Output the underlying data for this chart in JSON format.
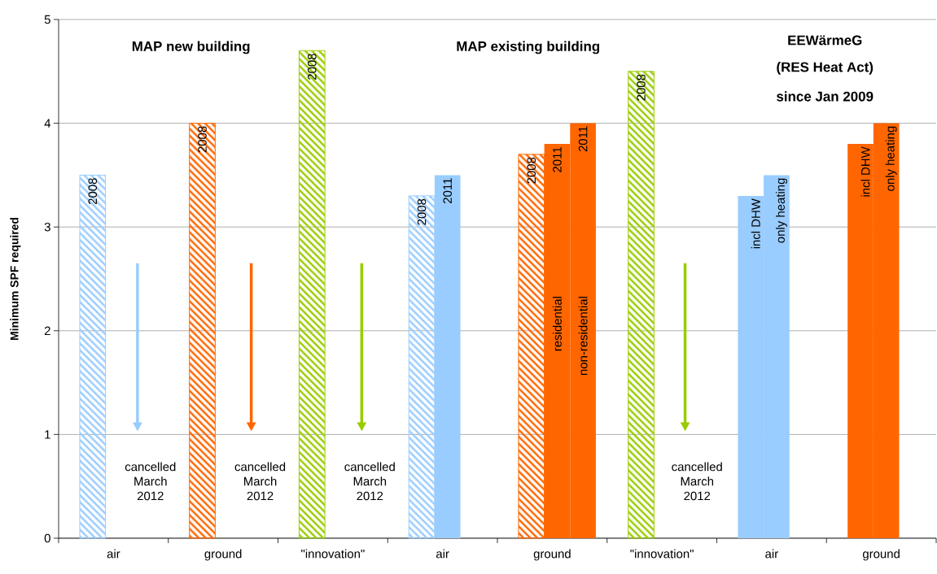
{
  "chart_data": {
    "type": "bar",
    "ylabel": "Minimum SPF required",
    "categories": [
      "air",
      "ground",
      "\"innovation\"",
      "air",
      "ground",
      "\"innovation\"",
      "air",
      "ground"
    ],
    "series": [
      {
        "values": [
          3.5,
          4.0,
          4.7,
          3.3,
          3.7,
          4.5,
          3.3,
          3.8
        ],
        "colors": [
          "#99ccff",
          "#ff6600",
          "#99cc00",
          "#99ccff",
          "#ff6600",
          "#99cc00",
          "#99ccff",
          "#ff6600"
        ]
      },
      {
        "values": [
          null,
          null,
          null,
          3.5,
          3.8,
          null,
          3.5,
          4.0
        ],
        "colors": [
          null,
          null,
          null,
          "#99ccff",
          "#ff6600",
          null,
          "#99ccff",
          "#ff6600"
        ]
      },
      {
        "values": [
          null,
          null,
          null,
          null,
          4.0,
          null,
          null,
          null
        ],
        "colors": [
          null,
          null,
          null,
          null,
          "#ff6600",
          null,
          null,
          null
        ]
      }
    ],
    "ylim": [
      0,
      5
    ],
    "yticks": [
      0,
      1,
      2,
      3,
      4,
      5
    ],
    "grid": "y",
    "annotations": [
      "MAP new building",
      "MAP existing building",
      "EEWärmeG",
      "(RES Heat Act)",
      "since Jan 2009",
      "cancelled March 2012",
      "cancelled March 2012",
      "cancelled March 2012",
      "cancelled March 2012",
      "residential",
      "non-residential",
      "incl DHW",
      "only heating",
      "incl DHW",
      "only heating",
      "2008",
      "2008",
      "2008",
      "2008",
      "2008",
      "2008",
      "2011",
      "2011",
      "2011"
    ]
  }
}
